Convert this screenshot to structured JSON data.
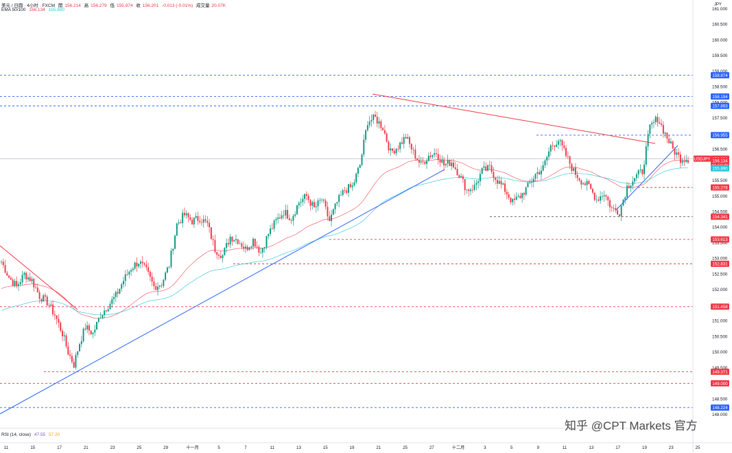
{
  "header": {
    "symbol": "美元 / 日圆 · 4小时 · FXCM",
    "open_label": "開",
    "open": "156.214",
    "high_label": "高",
    "high": "156.279",
    "low_label": "低",
    "low": "155.974",
    "close_label": "收",
    "close": "156.201",
    "change": "-0.013 (-0.01%)",
    "volume_label": "成交量",
    "volume": "20.07K"
  },
  "ema_legend": {
    "label": "EMA 50/100",
    "ema50": "156.134",
    "ema100": "155.890"
  },
  "rsi_legend": {
    "label": "RSI (14, close)",
    "v1": "47.55",
    "v2": "57.20"
  },
  "currency": "JPY",
  "watermark": "知乎 @CPT Markets 官方",
  "colors": {
    "up": "#089981",
    "down": "#f23645",
    "ema50": "#f23645",
    "ema100": "#26c6da",
    "blue_line": "#2962ff",
    "red_line": "#f23645"
  },
  "chart_data": {
    "type": "candlestick",
    "ylim": [
      148.0,
      161.0
    ],
    "y_ticks": [
      "161.000",
      "160.500",
      "160.000",
      "159.500",
      "159.000",
      "158.500",
      "158.000",
      "157.500",
      "157.000",
      "156.500",
      "156.000",
      "155.500",
      "155.000",
      "154.500",
      "154.000",
      "153.500",
      "153.000",
      "152.500",
      "152.000",
      "151.500",
      "151.000",
      "150.500",
      "150.000",
      "149.500",
      "149.000",
      "148.500",
      "148.000"
    ],
    "x_labels": [
      "11",
      "15",
      "17",
      "21",
      "23",
      "25",
      "29",
      "十一月",
      "5",
      "7",
      "11",
      "13",
      "15",
      "19",
      "21",
      "25",
      "27",
      "十二月",
      "3",
      "5",
      "9",
      "11",
      "13",
      "17",
      "19",
      "23",
      "25"
    ],
    "price_badges": [
      {
        "value": "158.874",
        "color": "#2962ff"
      },
      {
        "value": "158.194",
        "color": "#2962ff"
      },
      {
        "value": "157.893",
        "color": "#2962ff"
      },
      {
        "value": "156.955",
        "color": "#2962ff"
      },
      {
        "value": "156.201",
        "color": "#f23645"
      },
      {
        "value": "01:20:30",
        "color": "#f23645"
      },
      {
        "value": "156.134",
        "color": "#f23645"
      },
      {
        "value": "155.890",
        "color": "#26c6da"
      },
      {
        "value": "155.278",
        "color": "#f23645"
      },
      {
        "value": "154.341",
        "color": "#f23645"
      },
      {
        "value": "153.613",
        "color": "#f23645"
      },
      {
        "value": "152.831",
        "color": "#f23645"
      },
      {
        "value": "151.458",
        "color": "#f23645"
      },
      {
        "value": "149.371",
        "color": "#f23645"
      },
      {
        "value": "149.000",
        "color": "#f23645"
      },
      {
        "value": "148.224",
        "color": "#2962ff"
      }
    ],
    "symbol_badge": "USDJPY",
    "current_price": 156.201,
    "horizontal_levels": [
      {
        "value": 158.874,
        "color": "#2962ff"
      },
      {
        "value": 158.194,
        "color": "#2962ff"
      },
      {
        "value": 157.893,
        "color": "#2962ff"
      },
      {
        "value": 156.955,
        "color": "#2962ff"
      },
      {
        "value": 155.278,
        "color": "#f23645"
      },
      {
        "value": 154.341,
        "color": "#555555"
      },
      {
        "value": 153.613,
        "color": "#f23645"
      },
      {
        "value": 152.831,
        "color": "#f23645"
      },
      {
        "value": 151.458,
        "color": "#f23645"
      },
      {
        "value": 149.371,
        "color": "#f23645"
      },
      {
        "value": 149.0,
        "color": "#f23645"
      },
      {
        "value": 148.224,
        "color": "#2962ff"
      }
    ],
    "waypoints": [
      [
        0,
        152.9
      ],
      [
        4,
        152.4
      ],
      [
        8,
        152.1
      ],
      [
        12,
        152.5
      ],
      [
        16,
        152.3
      ],
      [
        20,
        151.8
      ],
      [
        24,
        151.6
      ],
      [
        28,
        151.2
      ],
      [
        32,
        150.6
      ],
      [
        35,
        150.0
      ],
      [
        38,
        149.6
      ],
      [
        41,
        150.3
      ],
      [
        44,
        150.8
      ],
      [
        48,
        150.6
      ],
      [
        52,
        151.2
      ],
      [
        56,
        151.5
      ],
      [
        60,
        151.8
      ],
      [
        64,
        152.3
      ],
      [
        68,
        152.7
      ],
      [
        72,
        152.9
      ],
      [
        76,
        152.6
      ],
      [
        80,
        152.1
      ],
      [
        84,
        152.2
      ],
      [
        88,
        152.8
      ],
      [
        92,
        154.1
      ],
      [
        96,
        154.4
      ],
      [
        100,
        154.2
      ],
      [
        104,
        154.3
      ],
      [
        108,
        154.1
      ],
      [
        112,
        153.3
      ],
      [
        116,
        153.1
      ],
      [
        120,
        153.7
      ],
      [
        124,
        153.6
      ],
      [
        128,
        153.3
      ],
      [
        132,
        153.6
      ],
      [
        136,
        153.2
      ],
      [
        140,
        153.8
      ],
      [
        144,
        154.2
      ],
      [
        148,
        154.5
      ],
      [
        152,
        154.3
      ],
      [
        156,
        154.8
      ],
      [
        160,
        155.0
      ],
      [
        164,
        154.6
      ],
      [
        168,
        154.9
      ],
      [
        172,
        154.2
      ],
      [
        176,
        154.8
      ],
      [
        180,
        155.2
      ],
      [
        184,
        155.3
      ],
      [
        188,
        156.0
      ],
      [
        192,
        157.4
      ],
      [
        196,
        157.5
      ],
      [
        200,
        157.2
      ],
      [
        204,
        156.4
      ],
      [
        208,
        156.6
      ],
      [
        212,
        156.9
      ],
      [
        216,
        156.4
      ],
      [
        220,
        156.0
      ],
      [
        224,
        156.3
      ],
      [
        228,
        156.4
      ],
      [
        232,
        156.0
      ],
      [
        236,
        156.1
      ],
      [
        240,
        155.7
      ],
      [
        244,
        155.2
      ],
      [
        248,
        155.3
      ],
      [
        252,
        155.8
      ],
      [
        256,
        155.9
      ],
      [
        260,
        155.5
      ],
      [
        264,
        155.2
      ],
      [
        268,
        154.8
      ],
      [
        272,
        155.0
      ],
      [
        276,
        155.3
      ],
      [
        280,
        155.7
      ],
      [
        284,
        155.9
      ],
      [
        288,
        156.6
      ],
      [
        292,
        156.8
      ],
      [
        296,
        156.3
      ],
      [
        300,
        155.8
      ],
      [
        304,
        155.5
      ],
      [
        308,
        155.3
      ],
      [
        312,
        154.9
      ],
      [
        316,
        155.1
      ],
      [
        320,
        154.6
      ],
      [
        324,
        154.5
      ],
      [
        328,
        155.3
      ],
      [
        332,
        155.6
      ],
      [
        336,
        155.8
      ],
      [
        340,
        157.2
      ],
      [
        344,
        157.5
      ],
      [
        348,
        157.0
      ],
      [
        352,
        156.5
      ],
      [
        356,
        156.2
      ],
      [
        360,
        156.2
      ]
    ]
  }
}
